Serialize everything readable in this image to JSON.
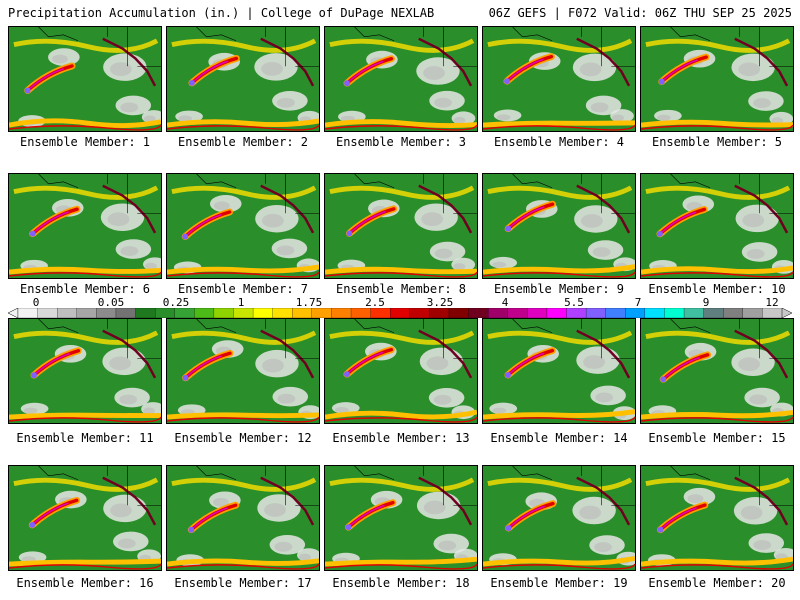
{
  "header": {
    "left": "Precipitation Accumulation (in.) | College of DuPage NEXLAB",
    "right": "06Z GEFS | F072 Valid: 06Z THU SEP 25 2025"
  },
  "members": [
    "Ensemble Member: 1",
    "Ensemble Member: 2",
    "Ensemble Member: 3",
    "Ensemble Member: 4",
    "Ensemble Member: 5",
    "Ensemble Member: 6",
    "Ensemble Member: 7",
    "Ensemble Member: 8",
    "Ensemble Member: 9",
    "Ensemble Member: 10",
    "Ensemble Member: 11",
    "Ensemble Member: 12",
    "Ensemble Member: 13",
    "Ensemble Member: 14",
    "Ensemble Member: 15",
    "Ensemble Member: 16",
    "Ensemble Member: 17",
    "Ensemble Member: 18",
    "Ensemble Member: 19",
    "Ensemble Member: 20"
  ],
  "colorbar": {
    "ticks": [
      "0",
      "0.05",
      "0.25",
      "1",
      "1.75",
      "2.5",
      "3.25",
      "4",
      "5.5",
      "7",
      "9",
      "12"
    ],
    "colors": [
      "#f2f2f2",
      "#d9d9d9",
      "#bfbfbf",
      "#a6a6a6",
      "#8c8c8c",
      "#737373",
      "#1f7a1f",
      "#2a8f2a",
      "#36a336",
      "#4cbb17",
      "#8fd400",
      "#c8e600",
      "#ffff00",
      "#ffe000",
      "#ffc000",
      "#ffa000",
      "#ff8000",
      "#ff6000",
      "#ff3000",
      "#e00000",
      "#c00000",
      "#a00000",
      "#800000",
      "#700020",
      "#a0006a",
      "#c0008c",
      "#e000c0",
      "#ff00ff",
      "#b040ff",
      "#8060ff",
      "#4080ff",
      "#00a0ff",
      "#00e0ff",
      "#00ffd0",
      "#40c0a0",
      "#608080",
      "#808080",
      "#a0a0a0",
      "#c8c8c8"
    ]
  }
}
